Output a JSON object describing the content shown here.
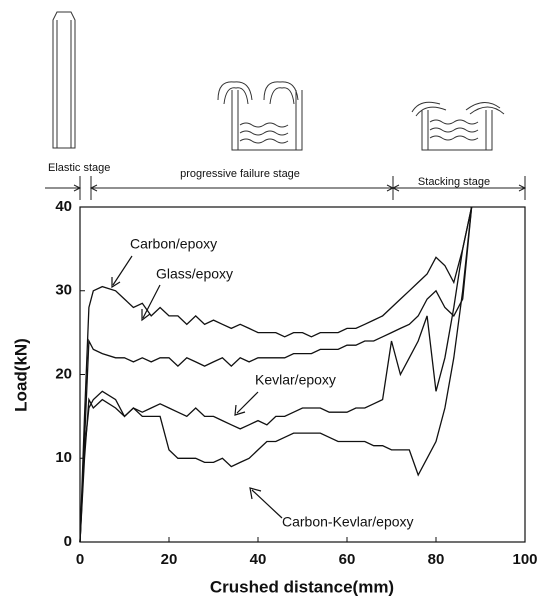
{
  "chart_data": {
    "type": "line",
    "xlabel": "Crushed distance(mm)",
    "ylabel": "Load(kN)",
    "annotations": [
      "Elastic stage",
      "progressive failure stage",
      "Stacking stage"
    ],
    "x": [
      0,
      1,
      2,
      3,
      5,
      8,
      10,
      12,
      14,
      16,
      18,
      20,
      22,
      24,
      26,
      28,
      30,
      32,
      34,
      36,
      38,
      40,
      42,
      44,
      46,
      48,
      50,
      52,
      54,
      56,
      58,
      60,
      62,
      64,
      66,
      68,
      70,
      72,
      74,
      76,
      78,
      80,
      82,
      84,
      86,
      88
    ],
    "series": [
      {
        "name": "Carbon/epoxy",
        "color": "#111111",
        "values": [
          0,
          15,
          28,
          30,
          30.5,
          30,
          29,
          28,
          28.5,
          27,
          28,
          27,
          27,
          26,
          27,
          26,
          26.5,
          26,
          25.5,
          26,
          25.5,
          25,
          25,
          25,
          24.5,
          25,
          25,
          24.5,
          25,
          25,
          25,
          25.5,
          25.5,
          26,
          26.5,
          27,
          28,
          29,
          30,
          31,
          32,
          34,
          33,
          31,
          35,
          40
        ]
      },
      {
        "name": "Glass/epoxy",
        "color": "#111111",
        "values": [
          0,
          12,
          24,
          23,
          22.5,
          22,
          22,
          21.5,
          22,
          21.5,
          22,
          22,
          21,
          22,
          21.5,
          21,
          21.5,
          22,
          21,
          22,
          21.5,
          22,
          22,
          22,
          22,
          22.5,
          22.5,
          22.5,
          23,
          23,
          23,
          23.5,
          23.5,
          24,
          24,
          24.5,
          25,
          25.5,
          26,
          27,
          29,
          30,
          28,
          27,
          29,
          40
        ]
      },
      {
        "name": "Kevlar/epoxy",
        "color": "#111111",
        "values": [
          0,
          10,
          17,
          16,
          17,
          16,
          15,
          16,
          15.5,
          16,
          16.5,
          16,
          15.5,
          15,
          16,
          15,
          15,
          14.5,
          14,
          13.5,
          14,
          14.5,
          14,
          15,
          15,
          15.5,
          16,
          16,
          16,
          15.5,
          15.5,
          15.5,
          16,
          16,
          16.5,
          17,
          24,
          20,
          22,
          24,
          27,
          18,
          22,
          28,
          35,
          40
        ]
      },
      {
        "name": "Carbon-Kevlar/epoxy",
        "color": "#111111",
        "values": [
          0,
          11,
          16,
          17,
          18,
          17,
          15,
          16,
          15,
          15,
          15,
          11,
          10,
          10,
          10,
          9.5,
          9.5,
          10,
          9,
          9.5,
          10,
          11,
          12,
          12,
          12.5,
          13,
          13,
          13,
          13,
          12.5,
          12,
          12,
          12,
          12,
          11.5,
          11.5,
          11,
          11,
          11,
          8,
          10,
          12,
          16,
          22,
          30,
          40
        ]
      }
    ],
    "xlim": [
      0,
      100
    ],
    "xticks": [
      0,
      20,
      40,
      60,
      80,
      100
    ],
    "ylim": [
      0,
      40
    ],
    "yticks": [
      0,
      10,
      20,
      30,
      40
    ],
    "grid": false
  }
}
